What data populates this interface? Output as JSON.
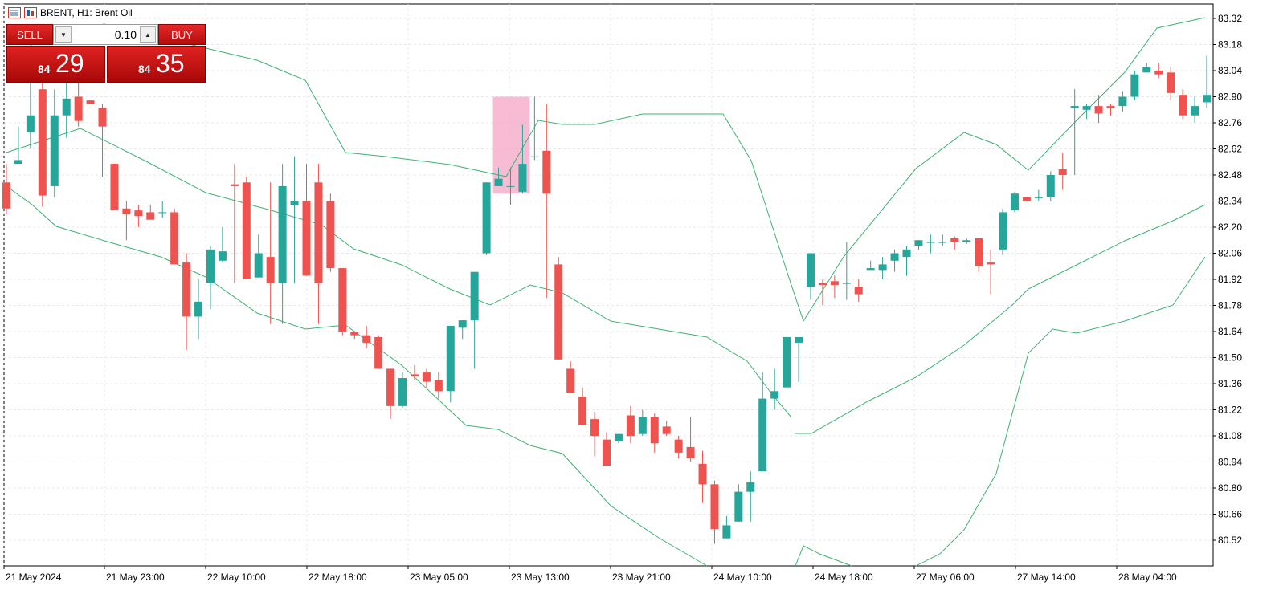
{
  "window": {
    "title": "BRENT, H1:  Brent Oil"
  },
  "trade_panel": {
    "sell_label": "SELL",
    "buy_label": "BUY",
    "lot": "0.10",
    "sell_price_prefix": "84",
    "sell_price_main": "29",
    "buy_price_prefix": "84",
    "buy_price_main": "35"
  },
  "colors": {
    "bull": "#26a69a",
    "bear": "#ef5350",
    "band": "#3cb371",
    "highlight": "#f4a6c4",
    "grid": "#e8e8e8"
  },
  "chart_data": {
    "type": "candlestick",
    "symbol": "BRENT",
    "timeframe": "H1",
    "ylim": [
      80.42,
      83.36
    ],
    "y_ticks": [
      "83.32",
      "83.18",
      "83.04",
      "82.90",
      "82.76",
      "82.62",
      "82.48",
      "82.34",
      "82.20",
      "82.06",
      "81.92",
      "81.78",
      "81.64",
      "81.50",
      "81.36",
      "81.22",
      "81.08",
      "80.94",
      "80.80",
      "80.66",
      "80.52"
    ],
    "x_ticks": [
      "21 May 2024",
      "21 May 23:00",
      "22 May 10:00",
      "22 May 18:00",
      "23 May 05:00",
      "23 May 13:00",
      "23 May 21:00",
      "24 May 10:00",
      "24 May 18:00",
      "27 May 06:00",
      "27 May 14:00",
      "28 May 04:00"
    ],
    "candles": [
      [
        82.44,
        82.54,
        82.3,
        82.27
      ],
      [
        82.54,
        82.74,
        82.56,
        82.59
      ],
      [
        82.71,
        83.02,
        82.8,
        82.62
      ],
      [
        82.94,
        83.08,
        82.37,
        82.31
      ],
      [
        82.42,
        82.94,
        82.8,
        82.36
      ],
      [
        82.8,
        82.99,
        82.89,
        82.68
      ],
      [
        82.9,
        83.01,
        82.77,
        82.74
      ],
      [
        82.88,
        82.88,
        82.86,
        82.88
      ],
      [
        82.84,
        82.86,
        82.74,
        82.47
      ],
      [
        82.54,
        82.46,
        82.29,
        82.31
      ],
      [
        82.3,
        82.34,
        82.27,
        82.13
      ],
      [
        82.29,
        82.32,
        82.26,
        82.2
      ],
      [
        82.28,
        82.32,
        82.24,
        82.26
      ],
      [
        82.28,
        82.34,
        82.28,
        82.25
      ],
      [
        82.28,
        82.3,
        82.0,
        82.0
      ],
      [
        82.01,
        82.06,
        81.72,
        81.54
      ],
      [
        81.72,
        81.92,
        81.8,
        81.6
      ],
      [
        81.9,
        82.1,
        82.08,
        81.76
      ],
      [
        82.02,
        82.2,
        82.07,
        82.01
      ],
      [
        82.43,
        82.54,
        82.42,
        81.9
      ],
      [
        82.44,
        82.47,
        81.92,
        81.94
      ],
      [
        81.93,
        82.16,
        82.06,
        81.96
      ],
      [
        82.04,
        82.44,
        81.9,
        81.68
      ],
      [
        81.9,
        82.54,
        82.42,
        81.68
      ],
      [
        82.32,
        82.58,
        82.34,
        81.9
      ],
      [
        82.34,
        82.54,
        81.94,
        81.96
      ],
      [
        82.44,
        82.54,
        81.9,
        81.68
      ],
      [
        82.34,
        82.38,
        81.98,
        81.96
      ],
      [
        81.98,
        81.98,
        81.64,
        81.62
      ],
      [
        81.64,
        81.64,
        81.62,
        81.6
      ],
      [
        81.62,
        81.67,
        81.58,
        81.55
      ],
      [
        81.61,
        81.62,
        81.44,
        81.44
      ],
      [
        81.44,
        81.44,
        81.24,
        81.17
      ],
      [
        81.24,
        81.42,
        81.39,
        81.23
      ],
      [
        81.41,
        81.46,
        81.4,
        81.38
      ],
      [
        81.42,
        81.44,
        81.37,
        81.34
      ],
      [
        81.38,
        81.42,
        81.32,
        81.28
      ],
      [
        81.32,
        81.48,
        81.67,
        81.26
      ],
      [
        81.66,
        81.66,
        81.7,
        81.6
      ],
      [
        81.7,
        81.74,
        81.96,
        81.44
      ],
      [
        82.06,
        82.24,
        82.44,
        82.05
      ],
      [
        82.42,
        82.52,
        82.46,
        82.44
      ],
      [
        82.42,
        82.52,
        82.42,
        82.32
      ],
      [
        82.39,
        82.75,
        82.54,
        82.38
      ],
      [
        82.58,
        82.9,
        82.58,
        82.56
      ],
      [
        82.61,
        82.86,
        82.38,
        81.82
      ],
      [
        82.0,
        82.04,
        81.49,
        81.86
      ],
      [
        81.44,
        81.48,
        81.31,
        81.54
      ],
      [
        81.29,
        81.34,
        81.14,
        81.2
      ],
      [
        81.17,
        81.21,
        81.08,
        80.97
      ],
      [
        81.06,
        81.1,
        80.92,
        80.96
      ],
      [
        81.05,
        81.08,
        81.09,
        81.04
      ],
      [
        81.19,
        81.24,
        81.08,
        81.04
      ],
      [
        81.09,
        81.22,
        81.18,
        81.08
      ],
      [
        81.18,
        81.2,
        81.04,
        80.99
      ],
      [
        81.13,
        81.16,
        81.09,
        81.08
      ],
      [
        81.06,
        81.08,
        80.99,
        80.96
      ],
      [
        81.02,
        81.18,
        80.96,
        80.94
      ],
      [
        80.93,
        81.0,
        80.82,
        80.72
      ],
      [
        80.82,
        80.84,
        80.58,
        80.5
      ],
      [
        80.53,
        80.65,
        80.6,
        80.6
      ],
      [
        80.62,
        80.82,
        80.78,
        80.62
      ],
      [
        80.78,
        80.89,
        80.83,
        80.62
      ],
      [
        80.89,
        81.42,
        81.28,
        80.96
      ],
      [
        81.28,
        81.44,
        81.32,
        81.22
      ],
      [
        81.34,
        81.38,
        81.61,
        81.58
      ],
      [
        81.58,
        81.6,
        81.61,
        81.37
      ],
      [
        81.88,
        81.93,
        82.06,
        81.81
      ],
      [
        81.9,
        81.92,
        81.89,
        81.78
      ],
      [
        81.91,
        81.94,
        81.89,
        81.82
      ],
      [
        81.9,
        82.12,
        81.9,
        81.81
      ],
      [
        81.88,
        81.92,
        81.84,
        81.8
      ],
      [
        81.97,
        82.02,
        81.98,
        81.98
      ],
      [
        81.97,
        82.04,
        82.0,
        81.92
      ],
      [
        82.02,
        82.08,
        82.06,
        81.96
      ],
      [
        82.04,
        82.1,
        82.08,
        81.94
      ],
      [
        82.1,
        82.12,
        82.13,
        82.08
      ],
      [
        82.12,
        82.16,
        82.12,
        82.06
      ],
      [
        82.12,
        82.16,
        82.12,
        82.1
      ],
      [
        82.14,
        82.15,
        82.12,
        82.08
      ],
      [
        82.12,
        82.14,
        82.13,
        82.11
      ],
      [
        82.14,
        82.12,
        81.99,
        81.96
      ],
      [
        82.01,
        82.08,
        82.0,
        81.84
      ],
      [
        82.08,
        82.3,
        82.28,
        82.05
      ],
      [
        82.29,
        82.39,
        82.38,
        82.28
      ],
      [
        82.36,
        82.36,
        82.34,
        82.34
      ],
      [
        82.36,
        82.4,
        82.36,
        82.34
      ],
      [
        82.36,
        82.5,
        82.48,
        82.34
      ],
      [
        82.51,
        82.6,
        82.48,
        82.4
      ],
      [
        82.84,
        82.94,
        82.85,
        82.48
      ],
      [
        82.83,
        82.86,
        82.85,
        82.78
      ],
      [
        82.85,
        82.91,
        82.81,
        82.76
      ],
      [
        82.85,
        82.86,
        82.84,
        82.8
      ],
      [
        82.85,
        82.93,
        82.9,
        82.82
      ],
      [
        82.9,
        83.04,
        83.02,
        82.88
      ],
      [
        83.03,
        83.08,
        83.06,
        83.04
      ],
      [
        83.04,
        83.08,
        83.02,
        83.0
      ],
      [
        83.03,
        83.06,
        82.92,
        82.88
      ],
      [
        82.91,
        82.94,
        82.8,
        82.78
      ],
      [
        82.8,
        82.9,
        82.85,
        82.76
      ],
      [
        82.87,
        83.12,
        82.91,
        82.84
      ]
    ],
    "bands_note": "Bollinger Bands overlay (upper/middle/lower)"
  }
}
